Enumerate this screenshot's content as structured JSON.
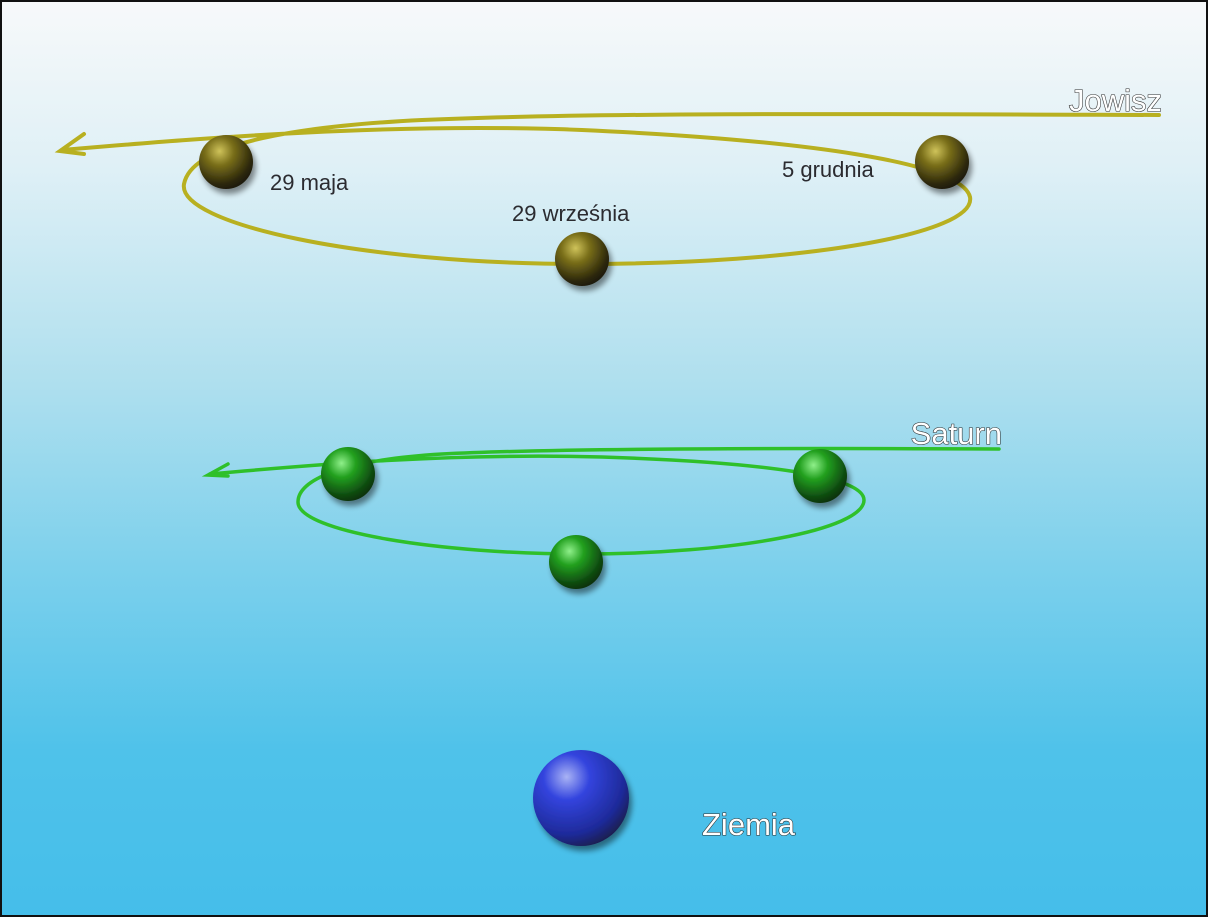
{
  "jupiter": {
    "name": "Jowisz",
    "dates": {
      "first": "29 maja",
      "second": "29 września",
      "third": "5 grudnia"
    },
    "color": "#b8b020",
    "planet_color": "#6e6413"
  },
  "saturn": {
    "name": "Saturn",
    "color": "#2fc02a",
    "planet_color": "#178a17"
  },
  "earth": {
    "name": "Ziemia",
    "planet_color": "#2a3cd8"
  }
}
